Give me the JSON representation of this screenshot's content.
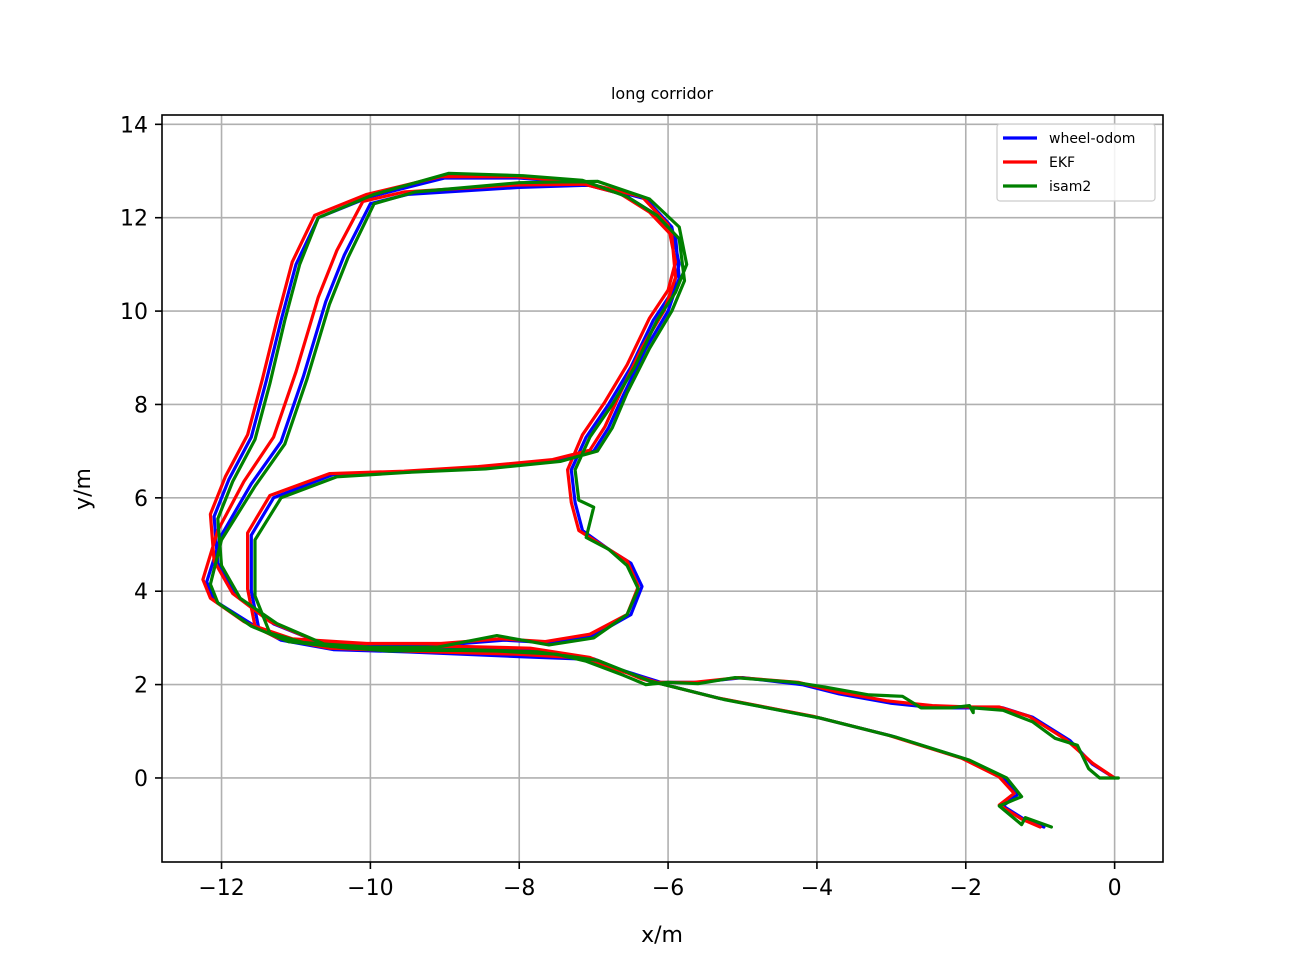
{
  "chart_data": {
    "type": "line",
    "title": "long corridor",
    "xlabel": "x/m",
    "ylabel": "y/m",
    "xlim": [
      -12.8,
      0.65
    ],
    "ylim": [
      -1.8,
      14.2
    ],
    "xticks": [
      -12,
      -10,
      -8,
      -6,
      -4,
      -2,
      0
    ],
    "yticks": [
      0,
      2,
      4,
      6,
      8,
      10,
      12,
      14
    ],
    "xtick_labels": [
      "−12",
      "−10",
      "−8",
      "−6",
      "−4",
      "−2",
      "0"
    ],
    "ytick_labels": [
      "0",
      "2",
      "4",
      "6",
      "8",
      "10",
      "12",
      "14"
    ],
    "grid": true,
    "legend_position": "top-right",
    "series": [
      {
        "name": "wheel-odom",
        "color": "#0000ff",
        "points": [
          [
            0.0,
            0.0
          ],
          [
            -0.3,
            0.3
          ],
          [
            -0.6,
            0.8
          ],
          [
            -1.1,
            1.3
          ],
          [
            -1.5,
            1.5
          ],
          [
            -1.9,
            1.5
          ],
          [
            -2.4,
            1.5
          ],
          [
            -3.0,
            1.6
          ],
          [
            -3.7,
            1.8
          ],
          [
            -4.2,
            2.0
          ],
          [
            -5.0,
            2.15
          ],
          [
            -5.6,
            2.05
          ],
          [
            -6.1,
            2.05
          ],
          [
            -6.6,
            2.3
          ],
          [
            -7.2,
            2.55
          ],
          [
            -8.0,
            2.6
          ],
          [
            -9.5,
            2.7
          ],
          [
            -10.5,
            2.75
          ],
          [
            -11.2,
            2.95
          ],
          [
            -11.6,
            3.3
          ],
          [
            -12.1,
            3.8
          ],
          [
            -12.2,
            4.2
          ],
          [
            -12.0,
            5.2
          ],
          [
            -11.6,
            6.3
          ],
          [
            -11.2,
            7.2
          ],
          [
            -10.9,
            8.6
          ],
          [
            -10.6,
            10.2
          ],
          [
            -10.35,
            11.2
          ],
          [
            -10.0,
            12.3
          ],
          [
            -9.5,
            12.5
          ],
          [
            -8.0,
            12.65
          ],
          [
            -7.0,
            12.7
          ],
          [
            -6.3,
            12.4
          ],
          [
            -5.95,
            11.8
          ],
          [
            -5.85,
            11.0
          ],
          [
            -5.95,
            10.4
          ],
          [
            -6.2,
            9.8
          ],
          [
            -6.5,
            8.8
          ],
          [
            -6.8,
            8.0
          ],
          [
            -7.1,
            7.3
          ],
          [
            -7.3,
            6.6
          ],
          [
            -7.25,
            5.9
          ],
          [
            -7.15,
            5.3
          ],
          [
            -6.8,
            4.9
          ],
          [
            -6.5,
            4.6
          ],
          [
            -6.35,
            4.1
          ],
          [
            -6.5,
            3.5
          ],
          [
            -7.0,
            3.05
          ],
          [
            -7.6,
            2.9
          ],
          [
            -8.2,
            2.95
          ],
          [
            -9.0,
            2.85
          ],
          [
            -10.0,
            2.85
          ],
          [
            -11.0,
            2.95
          ],
          [
            -11.5,
            3.2
          ],
          [
            -11.6,
            4.0
          ],
          [
            -11.6,
            5.2
          ],
          [
            -11.3,
            6.0
          ],
          [
            -10.5,
            6.5
          ],
          [
            -9.5,
            6.55
          ],
          [
            -8.5,
            6.65
          ],
          [
            -7.5,
            6.8
          ],
          [
            -7.0,
            7.0
          ],
          [
            -6.8,
            7.5
          ],
          [
            -6.6,
            8.2
          ],
          [
            -6.3,
            9.2
          ],
          [
            -6.0,
            10.0
          ],
          [
            -5.85,
            10.7
          ],
          [
            -5.9,
            11.6
          ],
          [
            -6.2,
            12.1
          ],
          [
            -6.6,
            12.5
          ],
          [
            -7.2,
            12.75
          ],
          [
            -8.0,
            12.85
          ],
          [
            -9.0,
            12.85
          ],
          [
            -10.0,
            12.45
          ],
          [
            -10.7,
            12.0
          ],
          [
            -11.0,
            11.0
          ],
          [
            -11.2,
            9.8
          ],
          [
            -11.4,
            8.5
          ],
          [
            -11.6,
            7.3
          ],
          [
            -11.9,
            6.4
          ],
          [
            -12.1,
            5.6
          ],
          [
            -12.05,
            4.6
          ],
          [
            -11.8,
            3.9
          ],
          [
            -11.3,
            3.3
          ],
          [
            -10.6,
            2.85
          ],
          [
            -9.8,
            2.75
          ],
          [
            -8.8,
            2.8
          ],
          [
            -7.8,
            2.75
          ],
          [
            -7.0,
            2.55
          ],
          [
            -6.3,
            2.1
          ],
          [
            -5.3,
            1.7
          ],
          [
            -4.0,
            1.3
          ],
          [
            -3.0,
            0.9
          ],
          [
            -2.0,
            0.4
          ],
          [
            -1.5,
            0.0
          ],
          [
            -1.3,
            -0.35
          ],
          [
            -1.5,
            -0.6
          ],
          [
            -1.2,
            -0.9
          ],
          [
            -0.95,
            -1.05
          ]
        ]
      },
      {
        "name": "EKF",
        "color": "#ff0000",
        "points": [
          [
            0.0,
            0.0
          ],
          [
            -0.3,
            0.32
          ],
          [
            -0.65,
            0.82
          ],
          [
            -1.15,
            1.32
          ],
          [
            -1.55,
            1.52
          ],
          [
            -1.95,
            1.52
          ],
          [
            -2.45,
            1.55
          ],
          [
            -3.05,
            1.65
          ],
          [
            -3.75,
            1.85
          ],
          [
            -4.25,
            2.05
          ],
          [
            -5.05,
            2.15
          ],
          [
            -5.65,
            2.05
          ],
          [
            -6.15,
            2.05
          ],
          [
            -6.65,
            2.3
          ],
          [
            -7.25,
            2.58
          ],
          [
            -8.05,
            2.65
          ],
          [
            -9.55,
            2.72
          ],
          [
            -10.55,
            2.78
          ],
          [
            -11.25,
            3.0
          ],
          [
            -11.7,
            3.35
          ],
          [
            -12.15,
            3.85
          ],
          [
            -12.25,
            4.25
          ],
          [
            -12.05,
            5.3
          ],
          [
            -11.7,
            6.35
          ],
          [
            -11.3,
            7.3
          ],
          [
            -11.0,
            8.7
          ],
          [
            -10.7,
            10.3
          ],
          [
            -10.45,
            11.3
          ],
          [
            -10.1,
            12.35
          ],
          [
            -9.55,
            12.55
          ],
          [
            -8.05,
            12.7
          ],
          [
            -7.05,
            12.72
          ],
          [
            -6.35,
            12.45
          ],
          [
            -6.0,
            11.85
          ],
          [
            -5.9,
            11.05
          ],
          [
            -6.0,
            10.45
          ],
          [
            -6.25,
            9.85
          ],
          [
            -6.55,
            8.85
          ],
          [
            -6.85,
            8.05
          ],
          [
            -7.15,
            7.35
          ],
          [
            -7.35,
            6.6
          ],
          [
            -7.3,
            5.9
          ],
          [
            -7.2,
            5.3
          ],
          [
            -6.85,
            4.95
          ],
          [
            -6.55,
            4.65
          ],
          [
            -6.4,
            4.1
          ],
          [
            -6.55,
            3.5
          ],
          [
            -7.05,
            3.08
          ],
          [
            -7.65,
            2.92
          ],
          [
            -8.25,
            2.98
          ],
          [
            -9.05,
            2.88
          ],
          [
            -10.05,
            2.88
          ],
          [
            -11.05,
            2.98
          ],
          [
            -11.55,
            3.25
          ],
          [
            -11.65,
            4.05
          ],
          [
            -11.65,
            5.25
          ],
          [
            -11.35,
            6.05
          ],
          [
            -10.55,
            6.52
          ],
          [
            -9.55,
            6.57
          ],
          [
            -8.55,
            6.67
          ],
          [
            -7.55,
            6.82
          ],
          [
            -7.05,
            7.02
          ],
          [
            -6.85,
            7.52
          ],
          [
            -6.65,
            8.22
          ],
          [
            -6.35,
            9.22
          ],
          [
            -6.05,
            10.02
          ],
          [
            -5.9,
            10.72
          ],
          [
            -5.95,
            11.62
          ],
          [
            -6.25,
            12.12
          ],
          [
            -6.65,
            12.52
          ],
          [
            -7.25,
            12.77
          ],
          [
            -8.05,
            12.88
          ],
          [
            -9.05,
            12.88
          ],
          [
            -10.05,
            12.5
          ],
          [
            -10.75,
            12.05
          ],
          [
            -11.05,
            11.05
          ],
          [
            -11.25,
            9.85
          ],
          [
            -11.45,
            8.55
          ],
          [
            -11.65,
            7.35
          ],
          [
            -11.95,
            6.45
          ],
          [
            -12.15,
            5.65
          ],
          [
            -12.1,
            4.65
          ],
          [
            -11.85,
            3.95
          ],
          [
            -11.35,
            3.35
          ],
          [
            -10.65,
            2.88
          ],
          [
            -9.85,
            2.78
          ],
          [
            -8.85,
            2.82
          ],
          [
            -7.85,
            2.78
          ],
          [
            -7.05,
            2.58
          ],
          [
            -6.35,
            2.12
          ],
          [
            -5.35,
            1.72
          ],
          [
            -4.05,
            1.32
          ],
          [
            -3.05,
            0.92
          ],
          [
            -2.05,
            0.42
          ],
          [
            -1.55,
            0.02
          ],
          [
            -1.35,
            -0.33
          ],
          [
            -1.55,
            -0.58
          ],
          [
            -1.25,
            -0.88
          ],
          [
            -1.0,
            -1.05
          ]
        ]
      },
      {
        "name": "isam2",
        "color": "#008000",
        "points": [
          [
            0.05,
            0.0
          ],
          [
            -0.2,
            0.0
          ],
          [
            -0.35,
            0.2
          ],
          [
            -0.5,
            0.7
          ],
          [
            -0.8,
            0.85
          ],
          [
            -1.1,
            1.2
          ],
          [
            -1.5,
            1.45
          ],
          [
            -1.9,
            1.5
          ],
          [
            -1.9,
            1.4
          ],
          [
            -1.95,
            1.55
          ],
          [
            -2.2,
            1.5
          ],
          [
            -2.6,
            1.5
          ],
          [
            -2.85,
            1.75
          ],
          [
            -3.3,
            1.78
          ],
          [
            -3.9,
            1.95
          ],
          [
            -4.3,
            2.05
          ],
          [
            -5.1,
            2.15
          ],
          [
            -5.6,
            2.02
          ],
          [
            -6.0,
            2.05
          ],
          [
            -6.3,
            2.0
          ],
          [
            -6.6,
            2.2
          ],
          [
            -7.1,
            2.5
          ],
          [
            -7.5,
            2.65
          ],
          [
            -8.3,
            2.72
          ],
          [
            -9.4,
            2.75
          ],
          [
            -10.3,
            2.78
          ],
          [
            -11.1,
            2.92
          ],
          [
            -11.6,
            3.25
          ],
          [
            -12.05,
            3.75
          ],
          [
            -12.15,
            4.15
          ],
          [
            -12.0,
            5.1
          ],
          [
            -11.55,
            6.25
          ],
          [
            -11.15,
            7.15
          ],
          [
            -10.85,
            8.55
          ],
          [
            -10.55,
            10.15
          ],
          [
            -10.3,
            11.15
          ],
          [
            -9.95,
            12.3
          ],
          [
            -9.4,
            12.55
          ],
          [
            -8.0,
            12.75
          ],
          [
            -6.95,
            12.78
          ],
          [
            -6.25,
            12.4
          ],
          [
            -5.85,
            11.8
          ],
          [
            -5.75,
            11.0
          ],
          [
            -5.9,
            10.4
          ],
          [
            -6.15,
            9.8
          ],
          [
            -6.45,
            8.8
          ],
          [
            -6.75,
            8.0
          ],
          [
            -7.05,
            7.3
          ],
          [
            -7.25,
            6.6
          ],
          [
            -7.2,
            5.95
          ],
          [
            -7.0,
            5.8
          ],
          [
            -7.1,
            5.15
          ],
          [
            -6.8,
            4.9
          ],
          [
            -6.55,
            4.55
          ],
          [
            -6.4,
            4.05
          ],
          [
            -6.55,
            3.5
          ],
          [
            -7.0,
            3.0
          ],
          [
            -7.6,
            2.85
          ],
          [
            -8.3,
            3.05
          ],
          [
            -9.1,
            2.8
          ],
          [
            -10.0,
            2.8
          ],
          [
            -10.9,
            2.9
          ],
          [
            -11.35,
            3.1
          ],
          [
            -11.55,
            3.9
          ],
          [
            -11.55,
            5.1
          ],
          [
            -11.2,
            6.0
          ],
          [
            -10.45,
            6.45
          ],
          [
            -9.45,
            6.55
          ],
          [
            -8.45,
            6.62
          ],
          [
            -7.45,
            6.78
          ],
          [
            -6.95,
            7.0
          ],
          [
            -6.75,
            7.5
          ],
          [
            -6.55,
            8.25
          ],
          [
            -6.25,
            9.2
          ],
          [
            -5.95,
            10.0
          ],
          [
            -5.78,
            10.65
          ],
          [
            -5.85,
            11.55
          ],
          [
            -6.15,
            12.05
          ],
          [
            -6.55,
            12.45
          ],
          [
            -7.15,
            12.8
          ],
          [
            -7.95,
            12.9
          ],
          [
            -8.95,
            12.95
          ],
          [
            -9.95,
            12.5
          ],
          [
            -10.7,
            12.0
          ],
          [
            -10.95,
            11.0
          ],
          [
            -11.15,
            9.8
          ],
          [
            -11.35,
            8.45
          ],
          [
            -11.55,
            7.25
          ],
          [
            -11.85,
            6.35
          ],
          [
            -12.05,
            5.55
          ],
          [
            -12.0,
            4.55
          ],
          [
            -11.75,
            3.85
          ],
          [
            -11.25,
            3.3
          ],
          [
            -10.55,
            2.82
          ],
          [
            -9.75,
            2.72
          ],
          [
            -8.75,
            2.75
          ],
          [
            -7.75,
            2.7
          ],
          [
            -6.95,
            2.52
          ],
          [
            -6.25,
            2.08
          ],
          [
            -5.25,
            1.68
          ],
          [
            -3.95,
            1.28
          ],
          [
            -2.95,
            0.88
          ],
          [
            -1.95,
            0.38
          ],
          [
            -1.45,
            0.0
          ],
          [
            -1.25,
            -0.4
          ],
          [
            -1.55,
            -0.6
          ],
          [
            -1.25,
            -1.0
          ],
          [
            -1.2,
            -0.85
          ],
          [
            -0.85,
            -1.05
          ]
        ]
      }
    ]
  }
}
